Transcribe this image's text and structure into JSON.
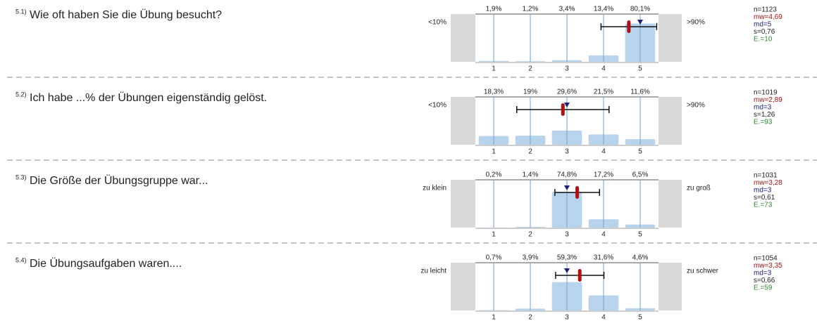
{
  "chart_data": [
    {
      "type": "bar",
      "number": "5.1)",
      "title": "Wie oft haben Sie die Übung besucht?",
      "left_label": "<10%",
      "right_label": ">90%",
      "categories": [
        "1",
        "2",
        "3",
        "4",
        "5"
      ],
      "values": [
        1.9,
        1.2,
        3.4,
        13.4,
        80.1
      ],
      "value_labels": [
        "1,9%",
        "1,2%",
        "3,4%",
        "13,4%",
        "80,1%"
      ],
      "ylim": [
        0,
        100
      ],
      "color": "#b8d4ec",
      "n": {
        "value": 1123,
        "label": "n=1123"
      },
      "mean": {
        "value": 4.69,
        "label": "mw=4,69"
      },
      "median": {
        "value": 5,
        "label": "md=5"
      },
      "sd": {
        "value": 0.76,
        "label": "s=0,76"
      },
      "abstentions": {
        "value": 10,
        "label": "E.=10"
      }
    },
    {
      "type": "bar",
      "number": "5.2)",
      "title": "Ich habe ...% der Übungen eigenständig gelöst.",
      "left_label": "<10%",
      "right_label": ">90%",
      "categories": [
        "1",
        "2",
        "3",
        "4",
        "5"
      ],
      "values": [
        18.3,
        19,
        29.6,
        21.5,
        11.6
      ],
      "value_labels": [
        "18,3%",
        "19%",
        "29,6%",
        "21,5%",
        "11,6%"
      ],
      "ylim": [
        0,
        100
      ],
      "color": "#b8d4ec",
      "n": {
        "value": 1019,
        "label": "n=1019"
      },
      "mean": {
        "value": 2.89,
        "label": "mw=2,89"
      },
      "median": {
        "value": 3,
        "label": "md=3"
      },
      "sd": {
        "value": 1.26,
        "label": "s=1,26"
      },
      "abstentions": {
        "value": 93,
        "label": "E.=93"
      }
    },
    {
      "type": "bar",
      "number": "5.3)",
      "title": "Die Größe der Übungsgruppe war...",
      "left_label": "zu klein",
      "right_label": "zu groß",
      "categories": [
        "1",
        "2",
        "3",
        "4",
        "5"
      ],
      "values": [
        0.2,
        1.4,
        74.8,
        17.2,
        6.5
      ],
      "value_labels": [
        "0,2%",
        "1,4%",
        "74,8%",
        "17,2%",
        "6,5%"
      ],
      "ylim": [
        0,
        100
      ],
      "color": "#b8d4ec",
      "n": {
        "value": 1031,
        "label": "n=1031"
      },
      "mean": {
        "value": 3.28,
        "label": "mw=3,28"
      },
      "median": {
        "value": 3,
        "label": "md=3"
      },
      "sd": {
        "value": 0.61,
        "label": "s=0,61"
      },
      "abstentions": {
        "value": 73,
        "label": "E.=73"
      }
    },
    {
      "type": "bar",
      "number": "5.4)",
      "title": "Die Übungsaufgaben waren....",
      "left_label": "zu leicht",
      "right_label": "zu schwer",
      "categories": [
        "1",
        "2",
        "3",
        "4",
        "5"
      ],
      "values": [
        0.7,
        3.9,
        59.3,
        31.6,
        4.6
      ],
      "value_labels": [
        "0,7%",
        "3,9%",
        "59,3%",
        "31,6%",
        "4,6%"
      ],
      "ylim": [
        0,
        100
      ],
      "color": "#b8d4ec",
      "n": {
        "value": 1054,
        "label": "n=1054"
      },
      "mean": {
        "value": 3.35,
        "label": "mw=3,35"
      },
      "median": {
        "value": 3,
        "label": "md=3"
      },
      "sd": {
        "value": 0.66,
        "label": "s=0,66"
      },
      "abstentions": {
        "value": 59,
        "label": "E.=59"
      }
    }
  ]
}
